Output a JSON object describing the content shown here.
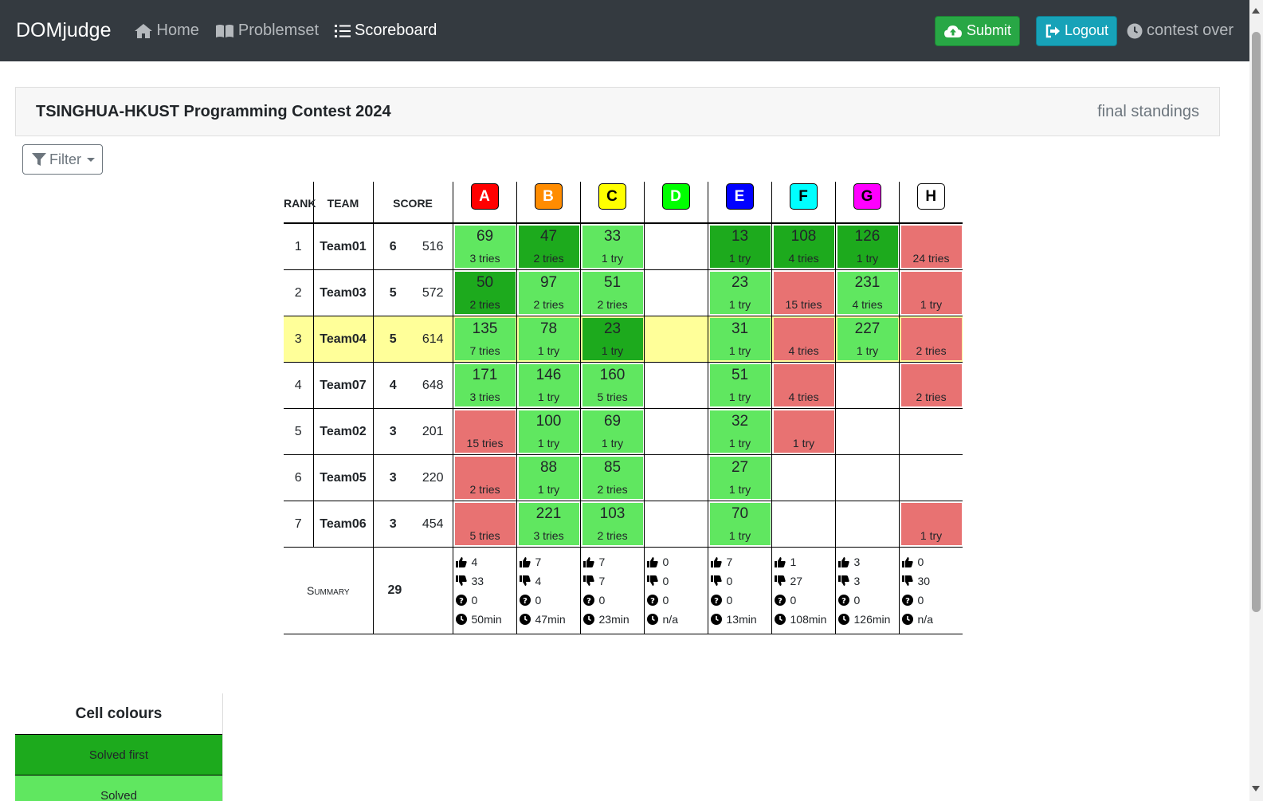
{
  "nav": {
    "brand": "DOMjudge",
    "home": "Home",
    "problemset": "Problemset",
    "scoreboard": "Scoreboard",
    "submit": "Submit",
    "logout": "Logout",
    "status": "contest over"
  },
  "header": {
    "title": "TSINGHUA-HKUST Programming Contest 2024",
    "standings": "final standings"
  },
  "filter": {
    "label": "Filter"
  },
  "table": {
    "headers": {
      "rank": "RANK",
      "team": "TEAM",
      "score": "SCORE"
    },
    "problems": [
      {
        "label": "A",
        "color": "#ff0000",
        "text_color": "#ffffff"
      },
      {
        "label": "B",
        "color": "#ff8c00",
        "text_color": "#ffffff"
      },
      {
        "label": "C",
        "color": "#ffff00",
        "text_color": "#000000"
      },
      {
        "label": "D",
        "color": "#00ff00",
        "text_color": "#ffffff"
      },
      {
        "label": "E",
        "color": "#0000ff",
        "text_color": "#ffffff"
      },
      {
        "label": "F",
        "color": "#00ffff",
        "text_color": "#000000"
      },
      {
        "label": "G",
        "color": "#ff00ff",
        "text_color": "#000000"
      },
      {
        "label": "H",
        "color": "#ffffff",
        "text_color": "#000000"
      }
    ],
    "rows": [
      {
        "rank": "1",
        "team": "Team01",
        "solved": "6",
        "time": "516",
        "highlight": false,
        "cells": [
          {
            "state": "solved",
            "time": "69",
            "tries": "3 tries"
          },
          {
            "state": "first",
            "time": "47",
            "tries": "2 tries"
          },
          {
            "state": "solved",
            "time": "33",
            "tries": "1 try"
          },
          {
            "state": "empty"
          },
          {
            "state": "first",
            "time": "13",
            "tries": "1 try"
          },
          {
            "state": "first",
            "time": "108",
            "tries": "4 tries"
          },
          {
            "state": "first",
            "time": "126",
            "tries": "1 try"
          },
          {
            "state": "fail",
            "tries": "24 tries"
          }
        ]
      },
      {
        "rank": "2",
        "team": "Team03",
        "solved": "5",
        "time": "572",
        "highlight": false,
        "cells": [
          {
            "state": "first",
            "time": "50",
            "tries": "2 tries"
          },
          {
            "state": "solved",
            "time": "97",
            "tries": "2 tries"
          },
          {
            "state": "solved",
            "time": "51",
            "tries": "2 tries"
          },
          {
            "state": "empty"
          },
          {
            "state": "solved",
            "time": "23",
            "tries": "1 try"
          },
          {
            "state": "fail",
            "tries": "15 tries"
          },
          {
            "state": "solved",
            "time": "231",
            "tries": "4 tries"
          },
          {
            "state": "fail",
            "tries": "1 try"
          }
        ]
      },
      {
        "rank": "3",
        "team": "Team04",
        "solved": "5",
        "time": "614",
        "highlight": true,
        "cells": [
          {
            "state": "solved",
            "time": "135",
            "tries": "7 tries"
          },
          {
            "state": "solved",
            "time": "78",
            "tries": "1 try"
          },
          {
            "state": "first",
            "time": "23",
            "tries": "1 try"
          },
          {
            "state": "empty"
          },
          {
            "state": "solved",
            "time": "31",
            "tries": "1 try"
          },
          {
            "state": "fail",
            "tries": "4 tries"
          },
          {
            "state": "solved",
            "time": "227",
            "tries": "1 try"
          },
          {
            "state": "fail",
            "tries": "2 tries"
          }
        ]
      },
      {
        "rank": "4",
        "team": "Team07",
        "solved": "4",
        "time": "648",
        "highlight": false,
        "cells": [
          {
            "state": "solved",
            "time": "171",
            "tries": "3 tries"
          },
          {
            "state": "solved",
            "time": "146",
            "tries": "1 try"
          },
          {
            "state": "solved",
            "time": "160",
            "tries": "5 tries"
          },
          {
            "state": "empty"
          },
          {
            "state": "solved",
            "time": "51",
            "tries": "1 try"
          },
          {
            "state": "fail",
            "tries": "4 tries"
          },
          {
            "state": "empty"
          },
          {
            "state": "fail",
            "tries": "2 tries"
          }
        ]
      },
      {
        "rank": "5",
        "team": "Team02",
        "solved": "3",
        "time": "201",
        "highlight": false,
        "cells": [
          {
            "state": "fail",
            "tries": "15 tries"
          },
          {
            "state": "solved",
            "time": "100",
            "tries": "1 try"
          },
          {
            "state": "solved",
            "time": "69",
            "tries": "1 try"
          },
          {
            "state": "empty"
          },
          {
            "state": "solved",
            "time": "32",
            "tries": "1 try"
          },
          {
            "state": "fail",
            "tries": "1 try"
          },
          {
            "state": "empty"
          },
          {
            "state": "empty"
          }
        ]
      },
      {
        "rank": "6",
        "team": "Team05",
        "solved": "3",
        "time": "220",
        "highlight": false,
        "cells": [
          {
            "state": "fail",
            "tries": "2 tries"
          },
          {
            "state": "solved",
            "time": "88",
            "tries": "1 try"
          },
          {
            "state": "solved",
            "time": "85",
            "tries": "2 tries"
          },
          {
            "state": "empty"
          },
          {
            "state": "solved",
            "time": "27",
            "tries": "1 try"
          },
          {
            "state": "empty"
          },
          {
            "state": "empty"
          },
          {
            "state": "empty"
          }
        ]
      },
      {
        "rank": "7",
        "team": "Team06",
        "solved": "3",
        "time": "454",
        "highlight": false,
        "cells": [
          {
            "state": "fail",
            "tries": "5 tries"
          },
          {
            "state": "solved",
            "time": "221",
            "tries": "3 tries"
          },
          {
            "state": "solved",
            "time": "103",
            "tries": "2 tries"
          },
          {
            "state": "empty"
          },
          {
            "state": "solved",
            "time": "70",
            "tries": "1 try"
          },
          {
            "state": "empty"
          },
          {
            "state": "empty"
          },
          {
            "state": "fail",
            "tries": "1 try"
          }
        ]
      }
    ],
    "summary": {
      "label": "Summary",
      "total": "29",
      "problems": [
        {
          "up": "4",
          "down": "33",
          "pending": "0",
          "first": "50min"
        },
        {
          "up": "7",
          "down": "4",
          "pending": "0",
          "first": "47min"
        },
        {
          "up": "7",
          "down": "7",
          "pending": "0",
          "first": "23min"
        },
        {
          "up": "0",
          "down": "0",
          "pending": "0",
          "first": "n/a"
        },
        {
          "up": "7",
          "down": "0",
          "pending": "0",
          "first": "13min"
        },
        {
          "up": "1",
          "down": "27",
          "pending": "0",
          "first": "108min"
        },
        {
          "up": "3",
          "down": "3",
          "pending": "0",
          "first": "126min"
        },
        {
          "up": "0",
          "down": "30",
          "pending": "0",
          "first": "n/a"
        }
      ]
    }
  },
  "legend": {
    "title": "Cell colours",
    "items": [
      {
        "label": "Solved first",
        "color": "#1daa1d"
      },
      {
        "label": "Solved",
        "color": "#60e760"
      }
    ]
  }
}
